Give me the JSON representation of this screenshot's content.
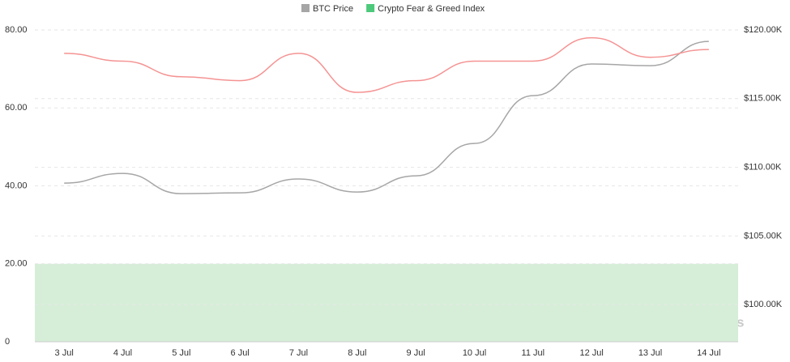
{
  "chart_data": {
    "type": "line",
    "categories": [
      "3 Jul",
      "4 Jul",
      "5 Jul",
      "6 Jul",
      "7 Jul",
      "8 Jul",
      "9 Jul",
      "10 Jul",
      "11 Jul",
      "12 Jul",
      "13 Jul",
      "14 Jul"
    ],
    "series": [
      {
        "name": "BTC Price",
        "color": "#a6a6a6",
        "axis": "y2",
        "values": [
          108850,
          109560,
          108080,
          108140,
          109150,
          108200,
          109380,
          111740,
          115220,
          117520,
          117400,
          119170
        ]
      },
      {
        "name": "Crypto Fear & Greed Index",
        "color": "#f59393",
        "legend_color": "#4cc97a",
        "values": [
          74,
          72,
          68,
          67,
          74,
          64,
          67,
          72,
          72,
          78,
          73,
          75
        ]
      }
    ],
    "band": {
      "from": 0,
      "to": 20,
      "color": "#d6eed8"
    },
    "ylim": [
      0,
      80
    ],
    "yticks": [
      0,
      {
        "value": 20,
        "label": "20.00"
      },
      {
        "value": 40,
        "label": "40.00"
      },
      {
        "value": 60,
        "label": "60.00"
      },
      {
        "value": 80,
        "label": "80.00"
      }
    ],
    "y2lim": [
      97300,
      120000
    ],
    "y2ticks": [
      {
        "value": 100000,
        "label": "$100.00K"
      },
      {
        "value": 105000,
        "label": "$105.00K"
      },
      {
        "value": 110000,
        "label": "$110.00K"
      },
      {
        "value": 115000,
        "label": "$115.00K"
      },
      {
        "value": 120000,
        "label": "$120.00K"
      }
    ],
    "grid": true,
    "watermark": "coinglass"
  }
}
